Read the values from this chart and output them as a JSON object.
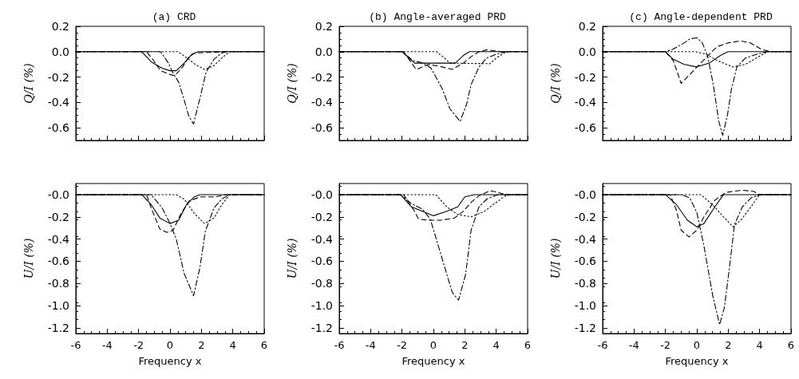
{
  "chart_data": [
    {
      "type": "line",
      "title": "(a) CRD",
      "ylabel": "Q/I (%)",
      "xlim": [
        -6,
        6
      ],
      "xticks": [
        -6,
        -4,
        -2,
        0,
        2,
        4,
        6
      ],
      "ylim": [
        -0.7,
        0.2
      ],
      "yticks": [
        {
          "value": 0.2,
          "label": "0.2"
        },
        {
          "value": 0,
          "label": "0.0"
        },
        {
          "value": -0.2,
          "label": "-0.2"
        },
        {
          "value": -0.4,
          "label": "-0.4"
        },
        {
          "value": -0.6,
          "label": "-0.6"
        }
      ],
      "tick_labels": "y",
      "marker": "none",
      "grid": false,
      "series": [
        {
          "color": "#000000",
          "line_style": "solid",
          "x": [
            -6,
            -1.8,
            -1.2,
            -0.5,
            0,
            0.4,
            0.9,
            1.4,
            1.8,
            6
          ],
          "values": [
            0,
            0,
            -0.08,
            -0.13,
            -0.15,
            -0.15,
            -0.09,
            -0.02,
            0,
            0
          ]
        },
        {
          "color": "#000000",
          "line_style": "dashed",
          "x": [
            -6,
            -1.5,
            -1.1,
            -0.6,
            0,
            0.3,
            0.8,
            1.2,
            1.6,
            3.5,
            6
          ],
          "values": [
            0,
            0,
            -0.06,
            -0.15,
            -0.18,
            -0.19,
            -0.12,
            -0.04,
            -0.01,
            0,
            0
          ]
        },
        {
          "color": "#000000",
          "line_style": "dashdot",
          "x": [
            -6,
            -0.6,
            -0.1,
            0.2,
            0.55,
            0.9,
            1.2,
            1.5,
            1.9,
            2.3,
            2.8,
            3.3,
            3.6,
            6
          ],
          "values": [
            0,
            0,
            -0.09,
            -0.17,
            -0.24,
            -0.38,
            -0.51,
            -0.57,
            -0.37,
            -0.16,
            -0.06,
            -0.01,
            0,
            0
          ]
        },
        {
          "color": "#000000",
          "line_style": "dotted",
          "x": [
            -6,
            0.5,
            1.1,
            1.6,
            2.2,
            2.8,
            3.3,
            3.8,
            6
          ],
          "values": [
            0,
            0,
            -0.05,
            -0.1,
            -0.14,
            -0.11,
            -0.05,
            0,
            0
          ]
        }
      ]
    },
    {
      "type": "line",
      "title": "(b) Angle-averaged PRD",
      "ylabel": "Q/I (%)",
      "xlim": [
        -6,
        6
      ],
      "xticks": [
        -6,
        -4,
        -2,
        0,
        2,
        4,
        6
      ],
      "ylim": [
        -0.7,
        0.2
      ],
      "yticks": [
        {
          "value": 0.2,
          "label": "0.2"
        },
        {
          "value": 0,
          "label": "0.0"
        },
        {
          "value": -0.2,
          "label": "-0.2"
        },
        {
          "value": -0.4,
          "label": "-0.4"
        },
        {
          "value": -0.6,
          "label": "-0.6"
        }
      ],
      "tick_labels": "y",
      "marker": "none",
      "grid": false,
      "series": [
        {
          "color": "#000000",
          "line_style": "solid",
          "x": [
            -6,
            -2,
            -1.2,
            1.4,
            1.9,
            2.3,
            6
          ],
          "values": [
            0,
            0,
            -0.09,
            -0.09,
            -0.03,
            0,
            0
          ]
        },
        {
          "color": "#000000",
          "line_style": "dashed",
          "x": [
            -6,
            -1.9,
            -1.1,
            -0.3,
            0.55,
            1.2,
            1.9,
            2.4,
            2.9,
            3.4,
            4,
            4.3,
            6
          ],
          "values": [
            0,
            0,
            -0.14,
            -0.1,
            -0.12,
            -0.14,
            -0.09,
            -0.04,
            0,
            0.015,
            0.005,
            0,
            0
          ]
        },
        {
          "color": "#000000",
          "line_style": "dashdot",
          "x": [
            -6,
            -2,
            -1.3,
            -0.65,
            -0.15,
            0.55,
            1.05,
            1.7,
            2.1,
            2.4,
            2.9,
            3.4,
            4,
            4.6,
            6
          ],
          "values": [
            0,
            0,
            -0.07,
            -0.09,
            -0.13,
            -0.29,
            -0.45,
            -0.55,
            -0.42,
            -0.26,
            -0.12,
            -0.05,
            -0.02,
            0,
            0
          ]
        },
        {
          "color": "#000000",
          "line_style": "dotted",
          "x": [
            -6,
            0.2,
            0.7,
            1.05,
            3.6,
            4,
            4.5,
            4.8,
            6
          ],
          "values": [
            0,
            0,
            -0.05,
            -0.09,
            -0.095,
            -0.05,
            -0.01,
            0,
            0
          ]
        }
      ]
    },
    {
      "type": "line",
      "title": "(c) Angle-dependent PRD",
      "ylabel": "Q/I (%)",
      "xlim": [
        -6,
        6
      ],
      "xticks": [
        -6,
        -4,
        -2,
        0,
        2,
        4,
        6
      ],
      "ylim": [
        -0.7,
        0.2
      ],
      "yticks": [
        {
          "value": 0.2,
          "label": "0.2"
        },
        {
          "value": 0,
          "label": "0.0"
        },
        {
          "value": -0.2,
          "label": "-0.2"
        },
        {
          "value": -0.4,
          "label": "-0.4"
        },
        {
          "value": -0.6,
          "label": "-0.6"
        }
      ],
      "tick_labels": "y",
      "marker": "none",
      "grid": false,
      "series": [
        {
          "color": "#000000",
          "line_style": "solid",
          "x": [
            -6,
            -2,
            -1.5,
            -0.8,
            0,
            0.8,
            1.5,
            2,
            6
          ],
          "values": [
            0,
            0,
            -0.06,
            -0.1,
            -0.12,
            -0.09,
            -0.03,
            0,
            0
          ]
        },
        {
          "color": "#000000",
          "line_style": "dashed",
          "x": [
            -6,
            -2,
            -1.5,
            -1,
            -0.45,
            0.25,
            0.8,
            1.3,
            2,
            2.8,
            3.4,
            4.1,
            4.7,
            6
          ],
          "values": [
            0,
            0,
            -0.07,
            -0.25,
            -0.18,
            -0.09,
            -0.02,
            0.04,
            0.07,
            0.085,
            0.07,
            0.02,
            0,
            0
          ]
        },
        {
          "color": "#000000",
          "line_style": "dashdot",
          "x": [
            -6,
            -2,
            -1.5,
            -0.8,
            -0.45,
            0,
            0.35,
            0.7,
            1.05,
            1.4,
            1.65,
            1.95,
            2.2,
            2.55,
            3.1,
            3.8,
            4.5,
            6
          ],
          "values": [
            0,
            0,
            0.02,
            0.07,
            0.1,
            0.11,
            0.07,
            -0.04,
            -0.26,
            -0.55,
            -0.66,
            -0.5,
            -0.3,
            -0.12,
            -0.05,
            -0.02,
            0,
            0
          ]
        },
        {
          "color": "#000000",
          "line_style": "dotted",
          "x": [
            -6,
            -0.1,
            0.6,
            1.3,
            2.3,
            3.1,
            3.8,
            4.5,
            6
          ],
          "values": [
            0,
            0,
            -0.02,
            -0.07,
            -0.12,
            -0.1,
            -0.05,
            0,
            0
          ]
        }
      ]
    },
    {
      "type": "line",
      "xlabel": "Frequency x",
      "ylabel": "U/I (%)",
      "xlim": [
        -6,
        6
      ],
      "xticks": [
        -6,
        -4,
        -2,
        0,
        2,
        4,
        6
      ],
      "ylim": [
        -1.25,
        0.1
      ],
      "yticks": [
        {
          "value": 0,
          "label": "-0.0"
        },
        {
          "value": -0.2,
          "label": "-0.2"
        },
        {
          "value": -0.4,
          "label": "-0.4"
        },
        {
          "value": -0.6,
          "label": "-0.6"
        },
        {
          "value": -0.8,
          "label": "-0.8"
        },
        {
          "value": -1,
          "label": "-1.0"
        },
        {
          "value": -1.2,
          "label": "-1.2"
        }
      ],
      "marker": "none",
      "grid": false,
      "series": [
        {
          "color": "#000000",
          "line_style": "solid",
          "x": [
            -6,
            -1.8,
            -1.2,
            -0.65,
            0,
            0.55,
            1.05,
            1.55,
            1.9,
            6
          ],
          "values": [
            0,
            0,
            -0.09,
            -0.21,
            -0.26,
            -0.23,
            -0.09,
            -0.02,
            0,
            0
          ]
        },
        {
          "color": "#000000",
          "line_style": "dashed",
          "x": [
            -6,
            -1.5,
            -1.2,
            -0.65,
            -0.2,
            0.2,
            0.7,
            1.2,
            1.9,
            2.9,
            3.6,
            6
          ],
          "values": [
            0,
            0,
            -0.12,
            -0.31,
            -0.34,
            -0.32,
            -0.17,
            -0.06,
            -0.02,
            -0.02,
            0,
            0
          ]
        },
        {
          "color": "#000000",
          "line_style": "dashdot",
          "x": [
            -6,
            -1.2,
            -0.5,
            0,
            0.4,
            0.9,
            1.5,
            1.9,
            2.25,
            2.8,
            3.3,
            3.8,
            6
          ],
          "values": [
            0,
            0,
            -0.12,
            -0.26,
            -0.4,
            -0.71,
            -0.91,
            -0.66,
            -0.33,
            -0.12,
            -0.04,
            0,
            0
          ]
        },
        {
          "color": "#000000",
          "line_style": "dotted",
          "x": [
            -6,
            0.4,
            0.9,
            1.55,
            2.2,
            2.8,
            3.3,
            3.8,
            6
          ],
          "values": [
            0,
            0,
            -0.04,
            -0.17,
            -0.26,
            -0.21,
            -0.09,
            0,
            0
          ]
        }
      ]
    },
    {
      "type": "line",
      "xlabel": "Frequency x",
      "ylabel": "U/I (%)",
      "xlim": [
        -6,
        6
      ],
      "xticks": [
        -6,
        -4,
        -2,
        0,
        2,
        4,
        6
      ],
      "ylim": [
        -1.25,
        0.1
      ],
      "yticks": [
        {
          "value": 0,
          "label": "-0.0"
        },
        {
          "value": -0.2,
          "label": "-0.2"
        },
        {
          "value": -0.4,
          "label": "-0.4"
        },
        {
          "value": -0.6,
          "label": "-0.6"
        },
        {
          "value": -0.8,
          "label": "-0.8"
        },
        {
          "value": -1,
          "label": "-1.0"
        },
        {
          "value": -1.2,
          "label": "-1.2"
        }
      ],
      "marker": "none",
      "grid": false,
      "series": [
        {
          "color": "#000000",
          "line_style": "solid",
          "x": [
            -6,
            -2.1,
            -1.4,
            -0.7,
            0,
            0.85,
            1.55,
            2,
            2.6,
            6
          ],
          "values": [
            0,
            0,
            -0.11,
            -0.15,
            -0.19,
            -0.15,
            -0.11,
            -0.02,
            0,
            0
          ]
        },
        {
          "color": "#000000",
          "line_style": "dashed",
          "x": [
            -6,
            -1.9,
            -1.2,
            -0.95,
            -0.35,
            0.5,
            1.35,
            1.9,
            2.4,
            2.9,
            3.6,
            4.1,
            4.6,
            6
          ],
          "values": [
            0,
            0,
            -0.15,
            -0.22,
            -0.23,
            -0.23,
            -0.21,
            -0.15,
            -0.07,
            -0.01,
            0.035,
            0.02,
            0,
            0
          ]
        },
        {
          "color": "#000000",
          "line_style": "dashdot",
          "x": [
            -6,
            -2.1,
            -1.4,
            -0.7,
            -0.2,
            0.5,
            1.2,
            1.6,
            2.05,
            2.4,
            2.9,
            3.4,
            4.1,
            6
          ],
          "values": [
            0,
            0,
            -0.08,
            -0.13,
            -0.22,
            -0.55,
            -0.88,
            -0.95,
            -0.72,
            -0.32,
            -0.11,
            -0.04,
            0,
            0
          ]
        },
        {
          "color": "#000000",
          "line_style": "dotted",
          "x": [
            -6,
            0.15,
            0.85,
            1.55,
            2.4,
            3.25,
            3.9,
            4.6,
            5,
            6
          ],
          "values": [
            0,
            0,
            -0.11,
            -0.18,
            -0.2,
            -0.15,
            -0.08,
            -0.01,
            0,
            0
          ]
        }
      ]
    },
    {
      "type": "line",
      "xlabel": "Frequency x",
      "ylabel": "U/I (%)",
      "xlim": [
        -6,
        6
      ],
      "xticks": [
        -6,
        -4,
        -2,
        0,
        2,
        4,
        6
      ],
      "ylim": [
        -1.25,
        0.1
      ],
      "yticks": [
        {
          "value": 0,
          "label": "-0.0"
        },
        {
          "value": -0.2,
          "label": "-0.2"
        },
        {
          "value": -0.4,
          "label": "-0.4"
        },
        {
          "value": -0.6,
          "label": "-0.6"
        },
        {
          "value": -0.8,
          "label": "-0.8"
        },
        {
          "value": -1,
          "label": "-1.0"
        },
        {
          "value": -1.2,
          "label": "-1.2"
        }
      ],
      "marker": "none",
      "grid": false,
      "series": [
        {
          "color": "#000000",
          "line_style": "solid",
          "x": [
            -6,
            -2,
            -1.3,
            -0.6,
            0,
            0.45,
            1.15,
            1.7,
            6
          ],
          "values": [
            0,
            0,
            -0.09,
            -0.23,
            -0.29,
            -0.26,
            -0.11,
            0,
            0
          ]
        },
        {
          "color": "#000000",
          "line_style": "dashed",
          "x": [
            -6,
            -1.7,
            -1.3,
            -1,
            -0.5,
            0,
            0.45,
            1.15,
            1.85,
            2.9,
            3.6,
            4,
            6
          ],
          "values": [
            0,
            0,
            -0.14,
            -0.32,
            -0.38,
            -0.32,
            -0.2,
            -0.05,
            0.02,
            0.04,
            0.03,
            0,
            0
          ]
        },
        {
          "color": "#000000",
          "line_style": "dashdot",
          "x": [
            -6,
            -1,
            -0.45,
            0,
            0.45,
            1,
            1.45,
            1.75,
            2.05,
            2.4,
            2.9,
            3.45,
            4,
            6
          ],
          "values": [
            0,
            0,
            -0.03,
            -0.16,
            -0.46,
            -0.9,
            -1.17,
            -1.02,
            -0.69,
            -0.27,
            -0.11,
            -0.03,
            0,
            0
          ]
        },
        {
          "color": "#000000",
          "line_style": "dotted",
          "x": [
            -6,
            0.25,
            1,
            1.7,
            2.3,
            2.8,
            3.45,
            4,
            6
          ],
          "values": [
            0,
            0,
            -0.09,
            -0.2,
            -0.29,
            -0.23,
            -0.11,
            0,
            0
          ]
        }
      ]
    }
  ]
}
